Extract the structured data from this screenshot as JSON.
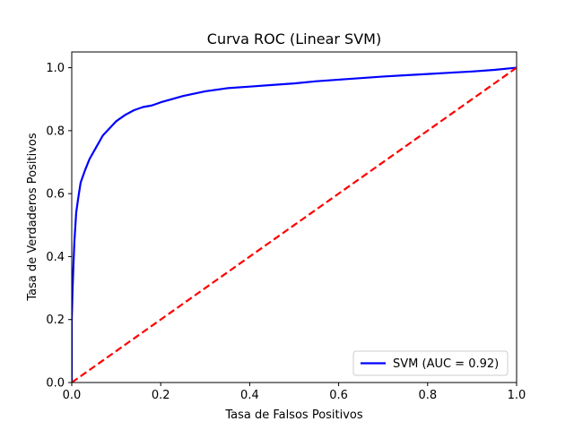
{
  "chart_data": {
    "type": "line",
    "title": "Curva ROC (Linear SVM)",
    "xlabel": "Tasa de Falsos Positivos",
    "ylabel": "Tasa de Verdaderos Positivos",
    "xlim": [
      0.0,
      1.0
    ],
    "ylim": [
      0.0,
      1.05
    ],
    "xticks": [
      "0.0",
      "0.2",
      "0.4",
      "0.6",
      "0.8",
      "1.0"
    ],
    "yticks": [
      "0.0",
      "0.2",
      "0.4",
      "0.6",
      "0.8",
      "1.0"
    ],
    "legend_position": "lower-right",
    "grid": false,
    "series": [
      {
        "name": "SVM (AUC = 0.92)",
        "color": "#0000ff",
        "style": "solid",
        "x": [
          0.0,
          0.0,
          0.002,
          0.004,
          0.006,
          0.01,
          0.015,
          0.02,
          0.03,
          0.04,
          0.05,
          0.06,
          0.07,
          0.08,
          0.09,
          0.1,
          0.12,
          0.14,
          0.16,
          0.18,
          0.2,
          0.25,
          0.3,
          0.35,
          0.4,
          0.45,
          0.5,
          0.55,
          0.6,
          0.65,
          0.7,
          0.75,
          0.8,
          0.85,
          0.9,
          0.95,
          1.0
        ],
        "y": [
          0.0,
          0.2,
          0.3,
          0.38,
          0.45,
          0.54,
          0.59,
          0.635,
          0.675,
          0.71,
          0.735,
          0.76,
          0.785,
          0.8,
          0.815,
          0.83,
          0.85,
          0.865,
          0.875,
          0.88,
          0.89,
          0.91,
          0.925,
          0.935,
          0.94,
          0.945,
          0.95,
          0.957,
          0.962,
          0.967,
          0.972,
          0.976,
          0.98,
          0.984,
          0.988,
          0.993,
          1.0
        ]
      },
      {
        "name": "",
        "color": "#ff0000",
        "style": "dashed",
        "x": [
          0.0,
          1.0
        ],
        "y": [
          0.0,
          1.0
        ]
      }
    ]
  }
}
